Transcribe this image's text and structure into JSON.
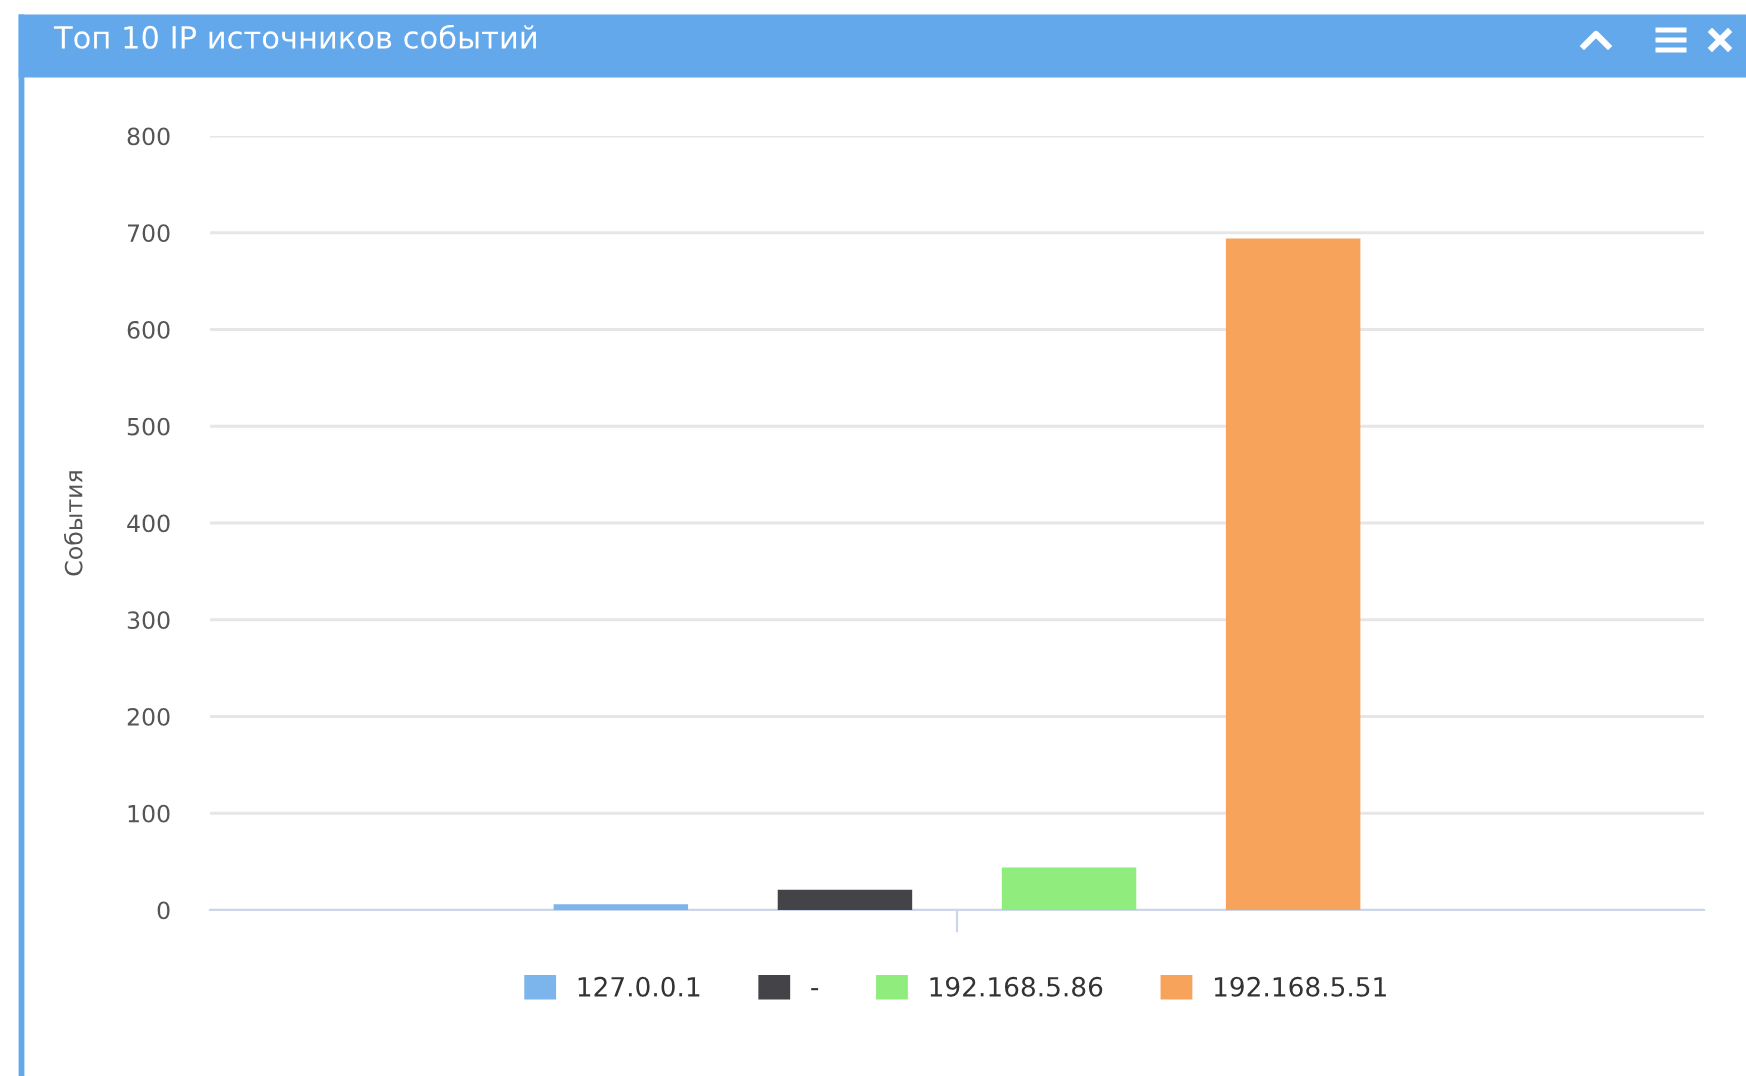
{
  "chart_data": {
    "type": "bar",
    "title": "Топ 10 IP источников событий",
    "ylabel": "События",
    "categories": [
      null
    ],
    "series": [
      {
        "name": "127.0.0.1",
        "color": "#7cb5ec",
        "values": [
          6
        ]
      },
      {
        "name": "-",
        "color": "#434348",
        "values": [
          21
        ]
      },
      {
        "name": "192.168.5.86",
        "color": "#90ed7d",
        "values": [
          44
        ]
      },
      {
        "name": "192.168.5.51",
        "color": "#f7a35c",
        "values": [
          694
        ]
      }
    ],
    "ylim": [
      0,
      800
    ],
    "yticks": [
      0,
      100,
      200,
      300,
      400,
      500,
      600,
      700,
      800
    ],
    "grid": "y",
    "legend": "bottom"
  }
}
